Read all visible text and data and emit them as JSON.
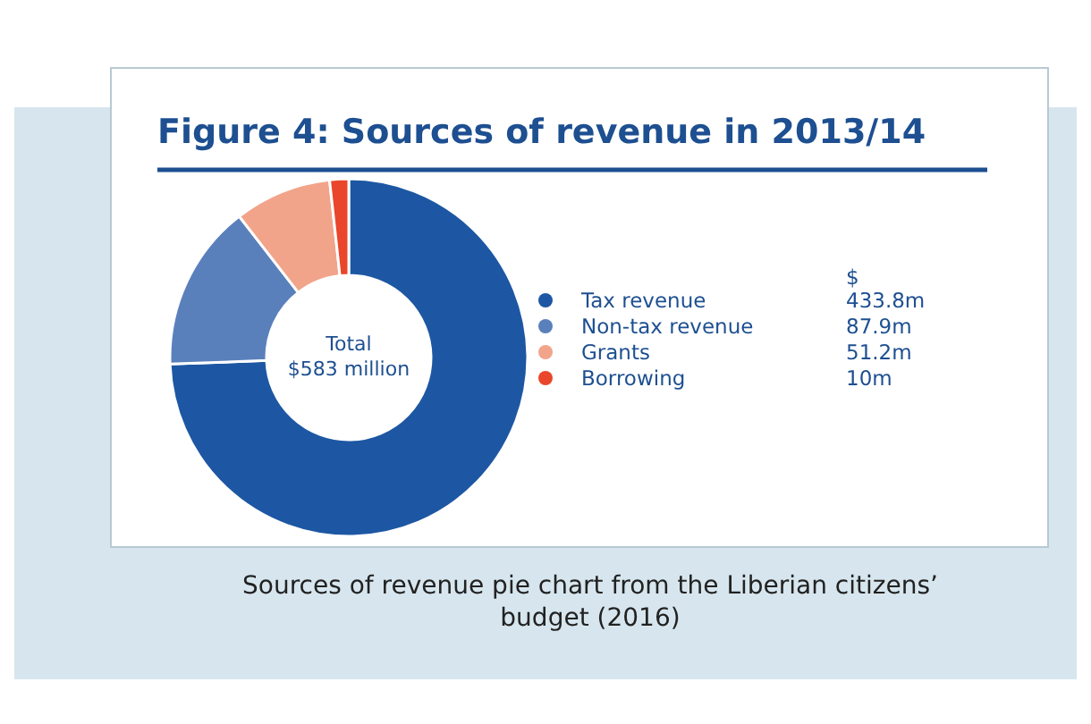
{
  "chart_data": {
    "type": "donut",
    "title": "Figure 4: Sources of revenue in 2013/14",
    "categories": [
      "Tax revenue",
      "Non-tax revenue",
      "Grants",
      "Borrowing"
    ],
    "values": [
      433.8,
      87.9,
      51.2,
      10
    ],
    "colors": [
      "#1d57a3",
      "#5a80bc",
      "#f2a48a",
      "#e9462c"
    ],
    "value_labels": [
      "433.8m",
      "87.9m",
      "51.2m",
      "10m"
    ],
    "legend_title": "$",
    "legend": "right",
    "annotations": [
      "Total $583 million",
      "Sources of revenue pie chart from the Liberian citizens’ budget (2016)"
    ]
  }
}
